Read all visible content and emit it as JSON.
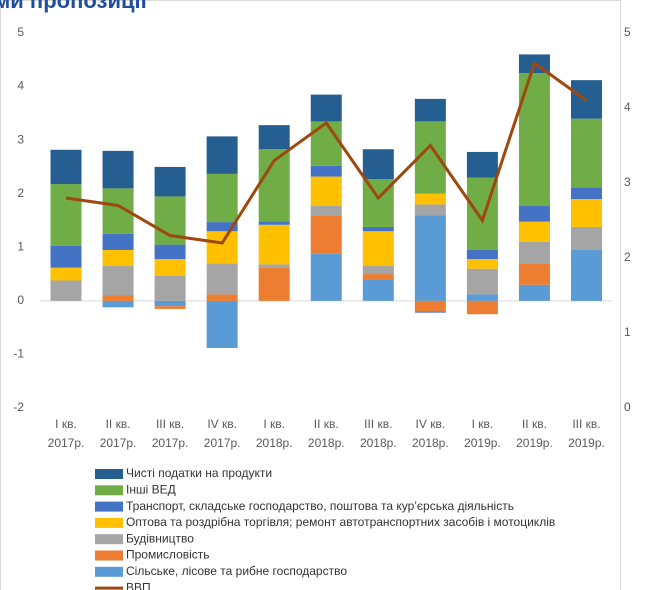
{
  "chart_data": {
    "type": "bar",
    "title": "ми пропозиції",
    "categories": [
      [
        "I кв.",
        "2017р."
      ],
      [
        "II кв.",
        "2017р."
      ],
      [
        "III кв.",
        "2017р."
      ],
      [
        "IV кв.",
        "2017р."
      ],
      [
        "I кв.",
        "2018р."
      ],
      [
        "II кв.",
        "2018р."
      ],
      [
        "III кв.",
        "2018р."
      ],
      [
        "IV кв.",
        "2018р."
      ],
      [
        "I кв.",
        "2019р."
      ],
      [
        "II кв.",
        "2019р."
      ],
      [
        "III кв.",
        "2019р."
      ]
    ],
    "series": [
      {
        "name": "Сільське, лісове та рибне господарство",
        "color": "#5b9bd5",
        "values": [
          0,
          -0.12,
          -0.1,
          -0.88,
          0,
          0.88,
          0.4,
          1.6,
          0.12,
          0.3,
          0.95
        ]
      },
      {
        "name": "Промисловість",
        "color": "#ed7d31",
        "values": [
          0,
          0.1,
          -0.05,
          0.12,
          0.62,
          0.72,
          0.1,
          -0.2,
          -0.25,
          0.4,
          0
        ]
      },
      {
        "name": "Будівництво",
        "color": "#a5a5a5",
        "values": [
          0.38,
          0.55,
          0.47,
          0.58,
          0.06,
          0.17,
          0.15,
          0.2,
          0.48,
          0.4,
          0.43
        ]
      },
      {
        "name": "Оптова та роздрібна торгівля; ремонт автотранспортних засобів і мотоциклів",
        "color": "#ffc000",
        "values": [
          0.24,
          0.3,
          0.31,
          0.6,
          0.74,
          0.55,
          0.65,
          0.2,
          0.18,
          0.38,
          0.52
        ]
      },
      {
        "name": "Транспорт, складське господарство, поштова та кур’єрська діяльність",
        "color": "#4472c4",
        "values": [
          0.41,
          0.3,
          0.27,
          0.17,
          0.06,
          0.2,
          0.08,
          -0.02,
          0.17,
          0.29,
          0.22
        ]
      },
      {
        "name": "Інші ВЕД",
        "color": "#70ad47",
        "values": [
          1.15,
          0.85,
          0.9,
          0.9,
          1.35,
          0.83,
          0.89,
          1.35,
          1.35,
          2.48,
          1.28
        ]
      },
      {
        "name": "Чисті податки на продукти",
        "color": "#255e91",
        "values": [
          0.64,
          0.7,
          0.55,
          0.7,
          0.45,
          0.5,
          0.56,
          0.42,
          0.48,
          0.35,
          0.72
        ]
      },
      {
        "name": "ВВП",
        "color": "#9e480e",
        "type": "line",
        "axis": "y2",
        "values": [
          2.8,
          2.7,
          2.3,
          2.2,
          3.3,
          3.8,
          2.8,
          3.5,
          2.5,
          4.6,
          4.1
        ]
      }
    ],
    "ylim": [
      -2,
      5
    ],
    "yticks": [
      -2,
      -1,
      0,
      1,
      2,
      3,
      4,
      5
    ],
    "y2lim": [
      0,
      5
    ],
    "y2ticks": [
      0,
      1,
      2,
      3,
      4,
      5
    ]
  }
}
